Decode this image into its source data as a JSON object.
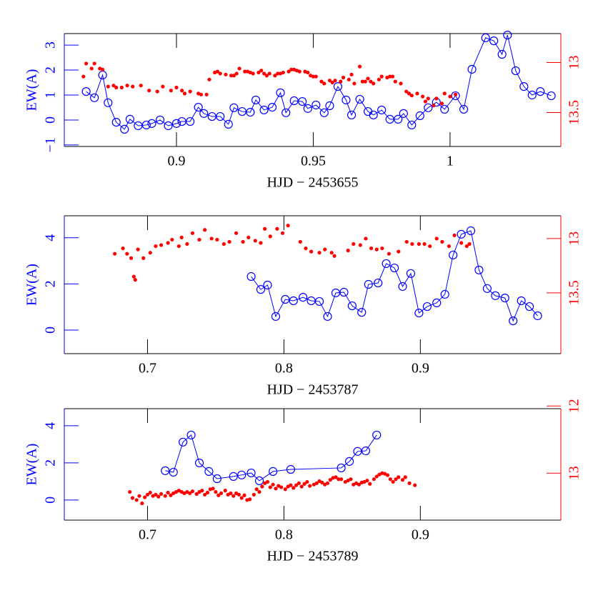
{
  "chart_data": [
    {
      "type": "line",
      "xlabel": "HJD − 2453655",
      "ylabel": "EW(A)",
      "xlim": [
        0.859,
        1.0405
      ],
      "xticks": [
        0.9,
        0.95,
        1
      ],
      "ylim": [
        -1.06,
        3.46
      ],
      "yticks": [
        {
          "value": -1,
          "label": "−1"
        },
        0,
        1,
        2,
        3
      ],
      "y2lim": [
        13.84,
        12.71
      ],
      "y2ticks": [
        13,
        13.5
      ],
      "axis_colors": {
        "left": "#0000ff",
        "right": "#ff0000",
        "other": "#000000"
      },
      "series": [
        {
          "color": "#0000ff",
          "style": "line-circles",
          "x": [
            0.867,
            0.87,
            0.873,
            0.875,
            0.878,
            0.881,
            0.883,
            0.886,
            0.889,
            0.891,
            0.894,
            0.897,
            0.9,
            0.902,
            0.905,
            0.908,
            0.91,
            0.913,
            0.916,
            0.919,
            0.921,
            0.924,
            0.927,
            0.929,
            0.932,
            0.935,
            0.938,
            0.94,
            0.943,
            0.946,
            0.948,
            0.951,
            0.954,
            0.956,
            0.959,
            0.962,
            0.964,
            0.967,
            0.97,
            0.972,
            0.975,
            0.978,
            0.981,
            0.983,
            0.986,
            0.989,
            0.992,
            0.995,
            0.998,
            1.002,
            1.005,
            1.008,
            1.013,
            1.016,
            1.019,
            1.021,
            1.024,
            1.027,
            1.03,
            1.033,
            1.037
          ],
          "values": [
            1.14,
            0.89,
            1.8,
            0.69,
            -0.09,
            -0.37,
            0.03,
            -0.23,
            -0.2,
            -0.14,
            0,
            -0.23,
            -0.14,
            -0.06,
            -0.06,
            0.51,
            0.26,
            0.14,
            0.14,
            -0.17,
            0.49,
            0.34,
            0.31,
            0.8,
            0.4,
            0.51,
            1.09,
            0.29,
            0.77,
            0.74,
            0.46,
            0.6,
            0.29,
            0.57,
            1.34,
            0.8,
            0.2,
            0.83,
            0.34,
            0.2,
            0.4,
            0.03,
            0.03,
            0.26,
            -0.2,
            0.17,
            0.49,
            0.71,
            0.43,
            0.97,
            0.43,
            2.03,
            3.29,
            3.17,
            2.63,
            3.4,
            1.97,
            1.34,
            1.0,
            1.14,
            0.97
          ]
        },
        {
          "color": "#ff0000",
          "style": "dots",
          "axis": "y2",
          "x": [
            0.866,
            0.867,
            0.869,
            0.87,
            0.872,
            0.873,
            0.875,
            0.877,
            0.878,
            0.88,
            0.882,
            0.884,
            0.887,
            0.89,
            0.893,
            0.895,
            0.898,
            0.9,
            0.902,
            0.903,
            0.905,
            0.908,
            0.909,
            0.911,
            0.912,
            0.914,
            0.915,
            0.916,
            0.918,
            0.92,
            0.921,
            0.922,
            0.923,
            0.925,
            0.926,
            0.927,
            0.928,
            0.93,
            0.931,
            0.932,
            0.933,
            0.934,
            0.936,
            0.937,
            0.938,
            0.939,
            0.941,
            0.942,
            0.943,
            0.944,
            0.945,
            0.947,
            0.948,
            0.949,
            0.95,
            0.951,
            0.953,
            0.954,
            0.956,
            0.957,
            0.958,
            0.96,
            0.961,
            0.963,
            0.964,
            0.965,
            0.967,
            0.968,
            0.969,
            0.97,
            0.971,
            0.972,
            0.974,
            0.975,
            0.977,
            0.978,
            0.979,
            0.98,
            0.982,
            0.984,
            0.985,
            0.986,
            0.988,
            0.99,
            0.991,
            0.992,
            0.994,
            0.995,
            0.997,
            0.998,
            1.0,
            1.002
          ],
          "values": [
            13.14,
            13.01,
            13.06,
            13.01,
            13.06,
            13.07,
            13.24,
            13.23,
            13.25,
            13.25,
            13.23,
            13.24,
            13.23,
            13.28,
            13.29,
            13.24,
            13.28,
            13.25,
            13.28,
            13.31,
            13.29,
            13.31,
            13.32,
            13.32,
            13.17,
            13.1,
            13.09,
            13.11,
            13.12,
            13.13,
            13.13,
            13.11,
            13.06,
            13.09,
            13.09,
            13.1,
            13.11,
            13.1,
            13.08,
            13.11,
            13.13,
            13.11,
            13.13,
            13.11,
            13.11,
            13.1,
            13.09,
            13.07,
            13.07,
            13.08,
            13.09,
            13.09,
            13.1,
            13.13,
            13.14,
            13.14,
            13.19,
            13.21,
            13.18,
            13.2,
            13.18,
            13.19,
            13.15,
            13.17,
            13.12,
            13.21,
            13.04,
            13.19,
            13.19,
            13.16,
            13.19,
            13.21,
            13.17,
            13.14,
            13.15,
            13.14,
            13.14,
            13.19,
            13.21,
            13.29,
            13.31,
            13.33,
            13.31,
            13.34,
            13.39,
            13.36,
            13.43,
            13.36,
            13.41,
            13.31,
            13.34,
            13.32
          ]
        }
      ]
    },
    {
      "type": "line",
      "xlabel": "HJD − 2453787",
      "ylabel": "EW(A)",
      "xlim": [
        0.639,
        1.003
      ],
      "xticks": [
        0.7,
        0.8,
        0.9
      ],
      "ylim": [
        -1.02,
        4.95
      ],
      "yticks": [
        0,
        2,
        4
      ],
      "y2lim": [
        14.06,
        12.79
      ],
      "y2ticks": [
        13,
        13.5
      ],
      "axis_colors": {
        "left": "#0000ff",
        "right": "#ff0000",
        "other": "#000000"
      },
      "series": [
        {
          "color": "#0000ff",
          "style": "line-circles",
          "x": [
            0.776,
            0.783,
            0.788,
            0.794,
            0.801,
            0.807,
            0.814,
            0.82,
            0.826,
            0.832,
            0.838,
            0.844,
            0.85,
            0.857,
            0.862,
            0.869,
            0.875,
            0.881,
            0.887,
            0.893,
            0.899,
            0.905,
            0.912,
            0.918,
            0.924,
            0.93,
            0.937,
            0.943,
            0.949,
            0.955,
            0.962,
            0.968,
            0.974,
            0.98,
            0.986
          ],
          "values": [
            2.32,
            1.76,
            1.95,
            0.59,
            1.33,
            1.27,
            1.42,
            1.27,
            1.24,
            0.59,
            1.61,
            1.64,
            1.05,
            0.77,
            1.98,
            2.04,
            2.88,
            2.69,
            1.89,
            2.45,
            0.74,
            1.02,
            1.18,
            1.55,
            3.25,
            4.15,
            4.3,
            2.6,
            1.8,
            1.49,
            1.39,
            0.4,
            1.27,
            1.02,
            0.62
          ]
        },
        {
          "color": "#ff0000",
          "style": "dots",
          "axis": "y2",
          "x": [
            0.676,
            0.682,
            0.685,
            0.688,
            0.69,
            0.691,
            0.693,
            0.697,
            0.702,
            0.706,
            0.71,
            0.715,
            0.718,
            0.723,
            0.725,
            0.729,
            0.733,
            0.738,
            0.742,
            0.747,
            0.751,
            0.756,
            0.76,
            0.765,
            0.77,
            0.774,
            0.779,
            0.783,
            0.786,
            0.79,
            0.795,
            0.799,
            0.803,
            0.812,
            0.816,
            0.82,
            0.826,
            0.83,
            0.835,
            0.837,
            0.847,
            0.851,
            0.856,
            0.86,
            0.864,
            0.868,
            0.872,
            0.877,
            0.884,
            0.89,
            0.894,
            0.899,
            0.903,
            0.907,
            0.912,
            0.916,
            0.921,
            0.925,
            0.93,
            0.934,
            0.936
          ],
          "values": [
            13.14,
            13.09,
            13.14,
            13.18,
            13.35,
            13.38,
            13.1,
            13.18,
            13.13,
            13.07,
            13.06,
            13.04,
            13.01,
            13.07,
            12.99,
            13.05,
            12.95,
            13.01,
            12.92,
            13.0,
            13.01,
            13.05,
            13.03,
            12.95,
            13.03,
            12.99,
            13.02,
            13.04,
            12.91,
            12.98,
            12.91,
            12.95,
            12.88,
            13.03,
            13.09,
            13.12,
            13.13,
            13.1,
            13.13,
            13.16,
            13.11,
            13.05,
            13.06,
            13.0,
            13.09,
            13.1,
            13.09,
            13.14,
            13.12,
            13.03,
            13.05,
            13.05,
            13.05,
            13.07,
            13.0,
            13.03,
            13.07,
            12.97,
            13.04,
            13.07,
            13.05
          ]
        }
      ]
    },
    {
      "type": "line",
      "xlabel": "HJD − 2453789",
      "ylabel": "EW(A)",
      "xlim": [
        0.639,
        1.003
      ],
      "xticks": [
        0.7,
        0.8,
        0.9
      ],
      "ylim": [
        -1.08,
        4.92
      ],
      "yticks": [
        0,
        2,
        4
      ],
      "y2lim": [
        13.7,
        12.04
      ],
      "y2ticks": [
        12,
        13
      ],
      "axis_colors": {
        "left": "#0000ff",
        "right": "#ff0000",
        "other": "#000000"
      },
      "series": [
        {
          "color": "#0000ff",
          "style": "line-circles",
          "x": [
            0.713,
            0.719,
            0.726,
            0.732,
            0.738,
            0.745,
            0.751,
            0.763,
            0.769,
            0.776,
            0.782,
            0.792,
            0.805,
            0.842,
            0.848,
            0.854,
            0.86,
            0.868
          ],
          "values": [
            1.58,
            1.5,
            3.12,
            3.5,
            2.0,
            1.54,
            1.15,
            1.27,
            1.35,
            1.46,
            1.04,
            1.54,
            1.65,
            1.73,
            2.08,
            2.62,
            2.65,
            3.5
          ]
        },
        {
          "color": "#ff0000",
          "style": "dots",
          "axis": "y2",
          "x": [
            0.687,
            0.689,
            0.692,
            0.694,
            0.696,
            0.698,
            0.7,
            0.702,
            0.704,
            0.706,
            0.708,
            0.71,
            0.713,
            0.715,
            0.717,
            0.719,
            0.721,
            0.723,
            0.725,
            0.727,
            0.729,
            0.731,
            0.733,
            0.736,
            0.738,
            0.74,
            0.742,
            0.744,
            0.746,
            0.748,
            0.75,
            0.752,
            0.754,
            0.757,
            0.759,
            0.761,
            0.763,
            0.765,
            0.767,
            0.769,
            0.771,
            0.773,
            0.775,
            0.778,
            0.78,
            0.782,
            0.784,
            0.786,
            0.788,
            0.79,
            0.792,
            0.794,
            0.796,
            0.798,
            0.801,
            0.803,
            0.805,
            0.807,
            0.809,
            0.811,
            0.813,
            0.815,
            0.817,
            0.819,
            0.822,
            0.824,
            0.826,
            0.828,
            0.83,
            0.832,
            0.834,
            0.836,
            0.838,
            0.84,
            0.842,
            0.845,
            0.847,
            0.849,
            0.851,
            0.853,
            0.855,
            0.857,
            0.859,
            0.861,
            0.863,
            0.866,
            0.868,
            0.87,
            0.872,
            0.874,
            0.876,
            0.878,
            0.88,
            0.882,
            0.884,
            0.887,
            0.889,
            0.892,
            0.896
          ],
          "values": [
            13.28,
            13.37,
            13.4,
            13.34,
            13.45,
            13.36,
            13.32,
            13.29,
            13.34,
            13.32,
            13.35,
            13.31,
            13.34,
            13.29,
            13.33,
            13.3,
            13.28,
            13.26,
            13.28,
            13.3,
            13.28,
            13.3,
            13.27,
            13.31,
            13.28,
            13.26,
            13.32,
            13.29,
            13.24,
            13.23,
            13.28,
            13.33,
            13.3,
            13.26,
            13.32,
            13.3,
            13.34,
            13.3,
            13.32,
            13.37,
            13.33,
            13.4,
            13.39,
            13.32,
            13.24,
            13.28,
            13.2,
            13.15,
            13.13,
            13.21,
            13.17,
            13.23,
            13.19,
            13.21,
            13.24,
            13.2,
            13.18,
            13.22,
            13.18,
            13.15,
            13.2,
            13.16,
            13.13,
            13.19,
            13.17,
            13.15,
            13.12,
            13.14,
            13.17,
            13.15,
            13.1,
            13.07,
            13.06,
            13.09,
            13.09,
            13.13,
            13.11,
            13.09,
            13.17,
            13.15,
            13.17,
            13.14,
            13.13,
            13.11,
            13.16,
            13.09,
            13.05,
            13.02,
            13.0,
            13.01,
            13.03,
            13.09,
            13.13,
            13.09,
            13.06,
            13.1,
            13.06,
            13.15,
            13.18
          ]
        }
      ]
    }
  ]
}
